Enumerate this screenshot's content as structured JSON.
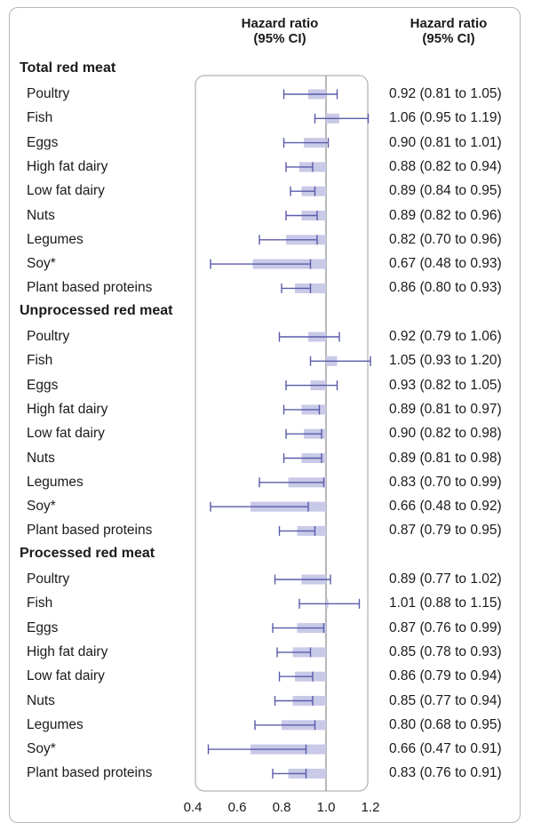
{
  "header": {
    "plot_col": [
      "Hazard ratio",
      "(95% CI)"
    ],
    "text_col": [
      "Hazard ratio",
      "(95% CI)"
    ]
  },
  "colors": {
    "box": "#c9c9e8",
    "ci_line": "#5b5bab",
    "frame": "#b5b5b5",
    "ref_line": "#888888"
  },
  "chart_data": {
    "type": "forest",
    "xlim": [
      0.4,
      1.2
    ],
    "xticks": [
      0.4,
      0.6,
      0.8,
      1.0,
      1.2
    ],
    "xtick_labels": [
      "0.4",
      "0.6",
      "0.8",
      "1.0",
      "1.2"
    ],
    "reference_line": 1.0,
    "groups": [
      {
        "title": "Total red meat",
        "rows": [
          {
            "label": "Poultry",
            "hr": 0.92,
            "lo": 0.81,
            "hi": 1.05,
            "text": "0.92 (0.81 to 1.05)"
          },
          {
            "label": "Fish",
            "hr": 1.06,
            "lo": 0.95,
            "hi": 1.19,
            "text": "1.06 (0.95 to 1.19)"
          },
          {
            "label": "Eggs",
            "hr": 0.9,
            "lo": 0.81,
            "hi": 1.01,
            "text": "0.90 (0.81 to 1.01)"
          },
          {
            "label": "High fat dairy",
            "hr": 0.88,
            "lo": 0.82,
            "hi": 0.94,
            "text": "0.88 (0.82 to 0.94)"
          },
          {
            "label": "Low fat dairy",
            "hr": 0.89,
            "lo": 0.84,
            "hi": 0.95,
            "text": "0.89 (0.84 to 0.95)"
          },
          {
            "label": "Nuts",
            "hr": 0.89,
            "lo": 0.82,
            "hi": 0.96,
            "text": "0.89 (0.82 to 0.96)"
          },
          {
            "label": "Legumes",
            "hr": 0.82,
            "lo": 0.7,
            "hi": 0.96,
            "text": "0.82 (0.70 to 0.96)"
          },
          {
            "label": "Soy*",
            "hr": 0.67,
            "lo": 0.48,
            "hi": 0.93,
            "text": "0.67 (0.48 to 0.93)"
          },
          {
            "label": "Plant based proteins",
            "hr": 0.86,
            "lo": 0.8,
            "hi": 0.93,
            "text": "0.86 (0.80 to 0.93)"
          }
        ]
      },
      {
        "title": "Unprocessed red meat",
        "rows": [
          {
            "label": "Poultry",
            "hr": 0.92,
            "lo": 0.79,
            "hi": 1.06,
            "text": "0.92 (0.79 to 1.06)"
          },
          {
            "label": "Fish",
            "hr": 1.05,
            "lo": 0.93,
            "hi": 1.2,
            "text": "1.05 (0.93 to 1.20)"
          },
          {
            "label": "Eggs",
            "hr": 0.93,
            "lo": 0.82,
            "hi": 1.05,
            "text": "0.93 (0.82 to 1.05)"
          },
          {
            "label": "High fat dairy",
            "hr": 0.89,
            "lo": 0.81,
            "hi": 0.97,
            "text": "0.89 (0.81 to 0.97)"
          },
          {
            "label": "Low fat dairy",
            "hr": 0.9,
            "lo": 0.82,
            "hi": 0.98,
            "text": "0.90 (0.82 to 0.98)"
          },
          {
            "label": "Nuts",
            "hr": 0.89,
            "lo": 0.81,
            "hi": 0.98,
            "text": "0.89 (0.81 to 0.98)"
          },
          {
            "label": "Legumes",
            "hr": 0.83,
            "lo": 0.7,
            "hi": 0.99,
            "text": "0.83 (0.70 to 0.99)"
          },
          {
            "label": "Soy*",
            "hr": 0.66,
            "lo": 0.48,
            "hi": 0.92,
            "text": "0.66 (0.48 to 0.92)"
          },
          {
            "label": "Plant based proteins",
            "hr": 0.87,
            "lo": 0.79,
            "hi": 0.95,
            "text": "0.87 (0.79 to 0.95)"
          }
        ]
      },
      {
        "title": "Processed red meat",
        "rows": [
          {
            "label": "Poultry",
            "hr": 0.89,
            "lo": 0.77,
            "hi": 1.02,
            "text": "0.89 (0.77 to 1.02)"
          },
          {
            "label": "Fish",
            "hr": 1.01,
            "lo": 0.88,
            "hi": 1.15,
            "text": "1.01 (0.88 to 1.15)"
          },
          {
            "label": "Eggs",
            "hr": 0.87,
            "lo": 0.76,
            "hi": 0.99,
            "text": "0.87 (0.76 to 0.99)"
          },
          {
            "label": "High fat dairy",
            "hr": 0.85,
            "lo": 0.78,
            "hi": 0.93,
            "text": "0.85 (0.78 to 0.93)"
          },
          {
            "label": "Low fat dairy",
            "hr": 0.86,
            "lo": 0.79,
            "hi": 0.94,
            "text": "0.86 (0.79 to 0.94)"
          },
          {
            "label": "Nuts",
            "hr": 0.85,
            "lo": 0.77,
            "hi": 0.94,
            "text": "0.85 (0.77 to 0.94)"
          },
          {
            "label": "Legumes",
            "hr": 0.8,
            "lo": 0.68,
            "hi": 0.95,
            "text": "0.80 (0.68 to 0.95)"
          },
          {
            "label": "Soy*",
            "hr": 0.66,
            "lo": 0.47,
            "hi": 0.91,
            "text": "0.66 (0.47 to 0.91)"
          },
          {
            "label": "Plant based proteins",
            "hr": 0.83,
            "lo": 0.76,
            "hi": 0.91,
            "text": "0.83 (0.76 to 0.91)"
          }
        ]
      }
    ]
  }
}
